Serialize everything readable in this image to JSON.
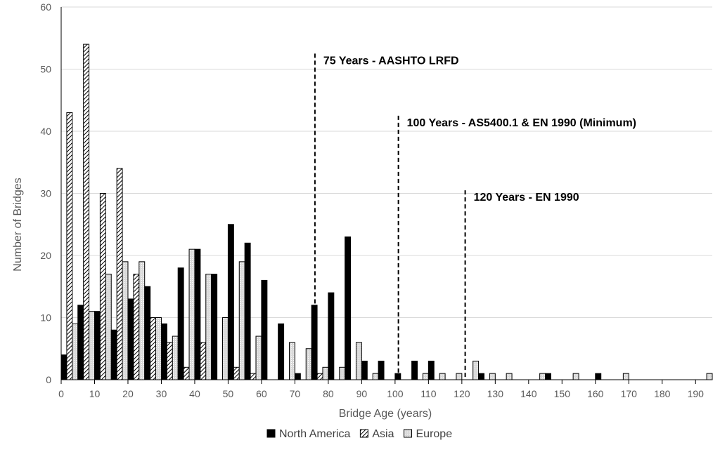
{
  "chart_data": {
    "type": "bar",
    "xlabel": "Bridge Age (years)",
    "ylabel": "Number of Bridges",
    "ylim": [
      0,
      60
    ],
    "y_ticks": [
      "0",
      "10",
      "20",
      "30",
      "40",
      "50",
      "60"
    ],
    "xlim": [
      0,
      195
    ],
    "x_ticks": [
      "0",
      "10",
      "20",
      "30",
      "40",
      "50",
      "60",
      "70",
      "80",
      "90",
      "100",
      "110",
      "120",
      "130",
      "140",
      "150",
      "160",
      "170",
      "180",
      "190"
    ],
    "grid": true,
    "legend_position": "bottom",
    "categories": [
      2.5,
      7.5,
      12.5,
      17.5,
      22.5,
      27.5,
      32.5,
      37.5,
      42.5,
      47.5,
      52.5,
      57.5,
      62.5,
      67.5,
      72.5,
      77.5,
      82.5,
      87.5,
      92.5,
      97.5,
      102.5,
      107.5,
      112.5,
      117.5,
      122.5,
      127.5,
      132.5,
      137.5,
      142.5,
      147.5,
      152.5,
      157.5,
      162.5,
      167.5,
      172.5,
      177.5,
      182.5,
      187.5,
      192.5
    ],
    "series": [
      {
        "name": "North America",
        "color": "#000000",
        "pattern": "solid",
        "values": [
          4,
          12,
          11,
          8,
          13,
          15,
          9,
          18,
          21,
          17,
          25,
          22,
          16,
          9,
          1,
          12,
          14,
          23,
          3,
          3,
          1,
          3,
          3,
          0,
          0,
          1,
          0,
          0,
          0,
          1,
          0,
          0,
          1,
          0,
          0,
          0,
          0,
          0,
          0
        ]
      },
      {
        "name": "Asia",
        "color": "#ffffff",
        "pattern": "hatch",
        "values": [
          43,
          54,
          30,
          34,
          17,
          10,
          6,
          2,
          6,
          0,
          2,
          1,
          0,
          0,
          0,
          1,
          0,
          0,
          0,
          0,
          0,
          0,
          0,
          0,
          0,
          0,
          0,
          0,
          0,
          0,
          0,
          0,
          0,
          0,
          0,
          0,
          0,
          0,
          0
        ]
      },
      {
        "name": "Europe",
        "color": "#d9d9d9",
        "pattern": "dots",
        "values": [
          9,
          11,
          17,
          19,
          19,
          10,
          7,
          21,
          17,
          10,
          19,
          7,
          0,
          6,
          5,
          2,
          2,
          6,
          1,
          0,
          0,
          1,
          1,
          1,
          3,
          1,
          1,
          0,
          1,
          0,
          1,
          0,
          0,
          1,
          0,
          0,
          0,
          0,
          1
        ]
      }
    ],
    "annotations": [
      {
        "x": 76,
        "text": "75 Years - AASHTO LRFD",
        "y_top": 52.5
      },
      {
        "x": 101,
        "text": "100 Years - AS5400.1  &  EN 1990 (Minimum)",
        "y_top": 42.5
      },
      {
        "x": 121,
        "text": "120 Years - EN 1990",
        "y_top": 30.5
      }
    ]
  }
}
